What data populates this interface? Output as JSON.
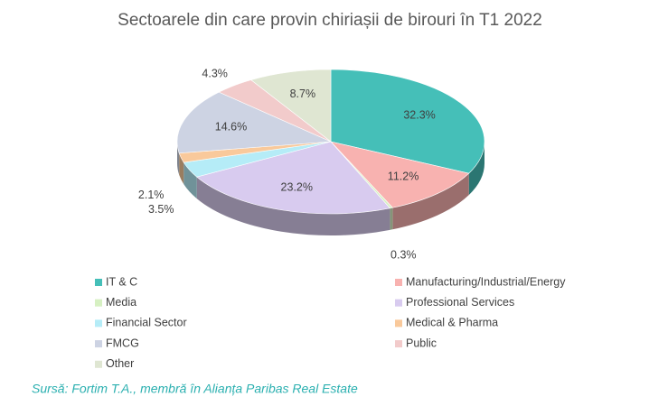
{
  "chart_data": {
    "type": "pie3d",
    "title": "Sectoarele din care provin chiriașii de birouri în T1  2022",
    "categories": [
      "IT & C",
      "Manufacturing/Industrial/Energy",
      "Media",
      "Professional Services",
      "Financial Sector",
      "Medical & Pharma",
      "FMCG",
      "Public",
      "Other"
    ],
    "values": [
      32.3,
      11.2,
      0.3,
      23.2,
      3.5,
      2.1,
      14.6,
      4.3,
      8.7
    ],
    "value_labels": [
      "32.3%",
      "11.2%",
      "0.3%",
      "23.2%",
      "3.5%",
      "2.1%",
      "14.6%",
      "4.3%",
      "8.7%"
    ],
    "colors": [
      "#45bfb8",
      "#f8b2b0",
      "#d6f0c2",
      "#d8cbef",
      "#b5ecf7",
      "#f9c99b",
      "#cdd3e3",
      "#f2cbcb",
      "#dfe6d2"
    ],
    "source": "Sursă: Fortim T.A., membră în Alianța Paribas Real Estate"
  }
}
